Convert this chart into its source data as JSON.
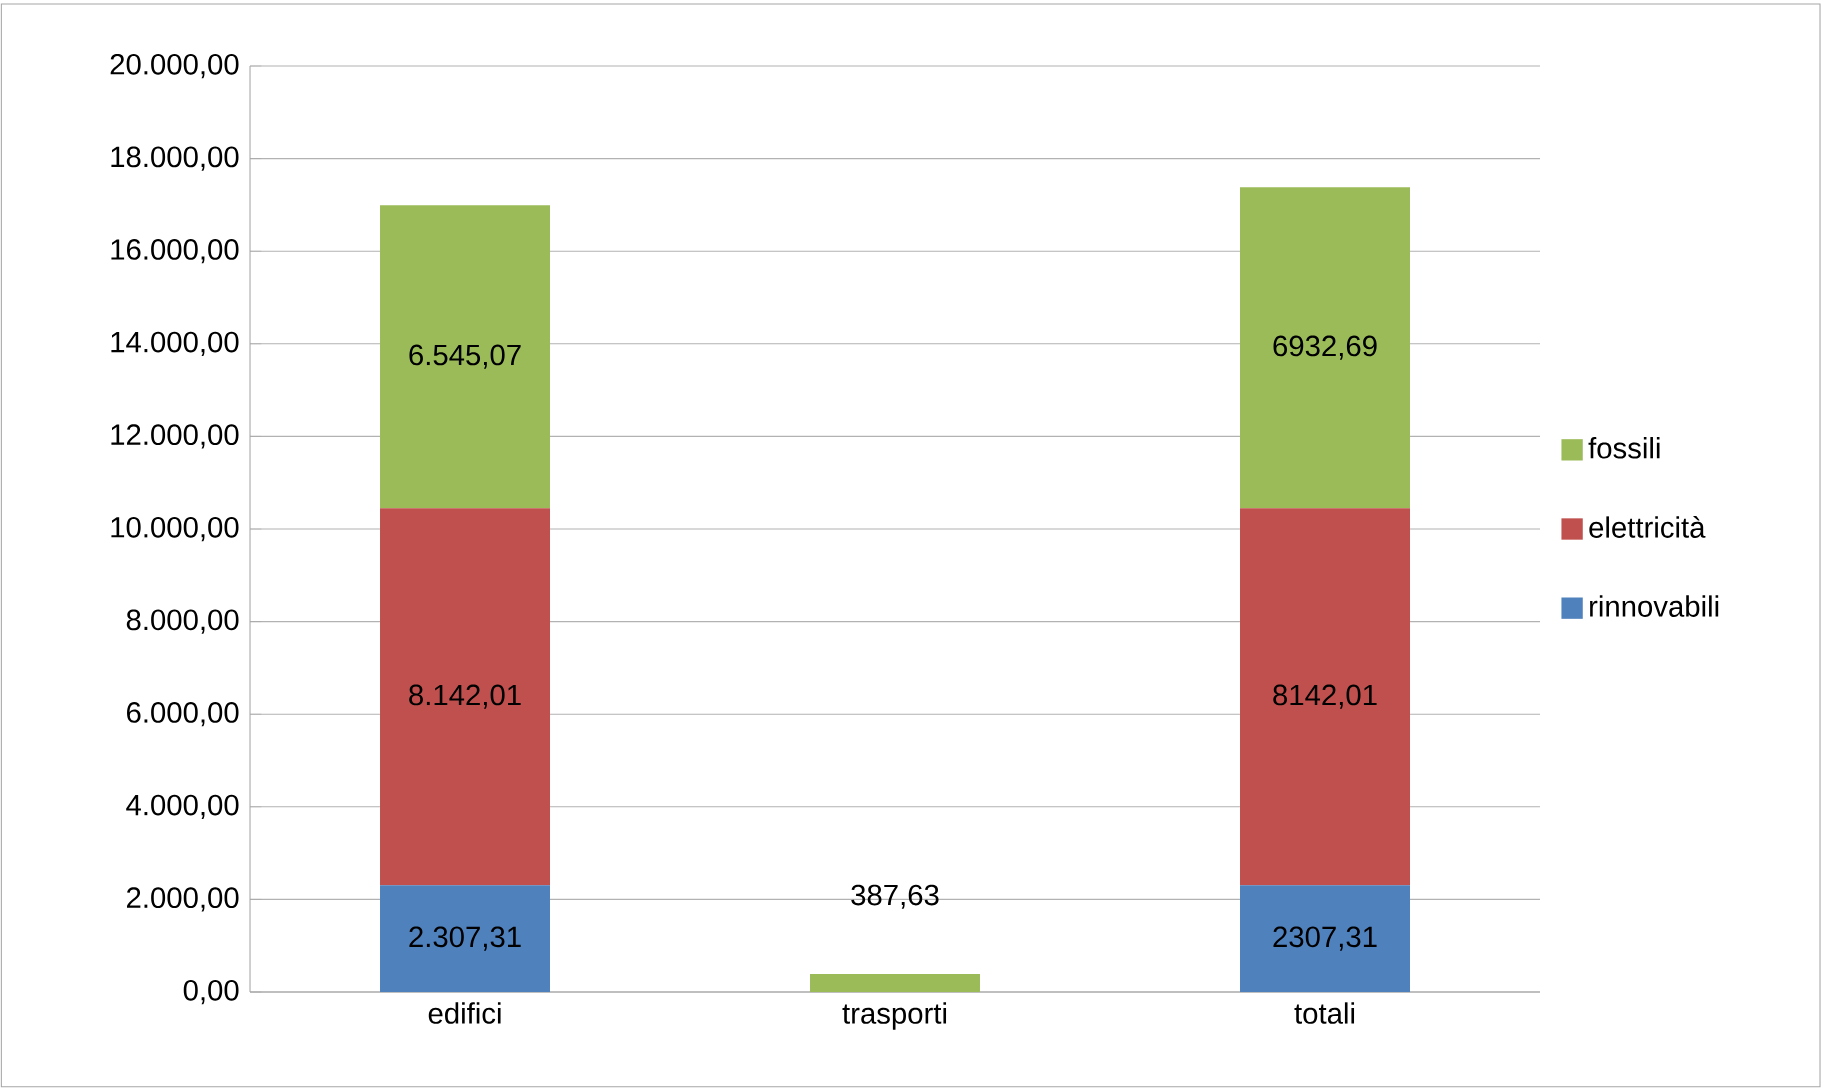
{
  "chart_data": {
    "type": "bar",
    "stacked": true,
    "grid": "y",
    "legend": "right",
    "categories": [
      "edifici",
      "trasporti",
      "totali"
    ],
    "series": [
      {
        "name": "rinnovabili",
        "color": "#4f81bd",
        "values": [
          2307.31,
          0,
          2307.31
        ],
        "value_labels": [
          "2.307,31",
          null,
          "2307,31"
        ]
      },
      {
        "name": "elettricità",
        "color": "#c0504d",
        "values": [
          8142.01,
          0,
          8142.01
        ],
        "value_labels": [
          "8.142,01",
          null,
          "8142,01"
        ]
      },
      {
        "name": "fossili",
        "color": "#9bbb59",
        "values": [
          6545.07,
          387.63,
          6932.69
        ],
        "value_labels": [
          "6.545,07",
          "387,63",
          "6932,69"
        ]
      }
    ],
    "ylim": [
      0,
      20000
    ],
    "yticks": [
      {
        "value": 0,
        "label": "0,00"
      },
      {
        "value": 2000,
        "label": "2.000,00"
      },
      {
        "value": 4000,
        "label": "4.000,00"
      },
      {
        "value": 6000,
        "label": "6.000,00"
      },
      {
        "value": 8000,
        "label": "8.000,00"
      },
      {
        "value": 10000,
        "label": "10.000,00"
      },
      {
        "value": 12000,
        "label": "12.000,00"
      },
      {
        "value": 14000,
        "label": "14.000,00"
      },
      {
        "value": 16000,
        "label": "16.000,00"
      },
      {
        "value": 18000,
        "label": "18.000,00"
      },
      {
        "value": 20000,
        "label": "20.000,00"
      }
    ]
  }
}
